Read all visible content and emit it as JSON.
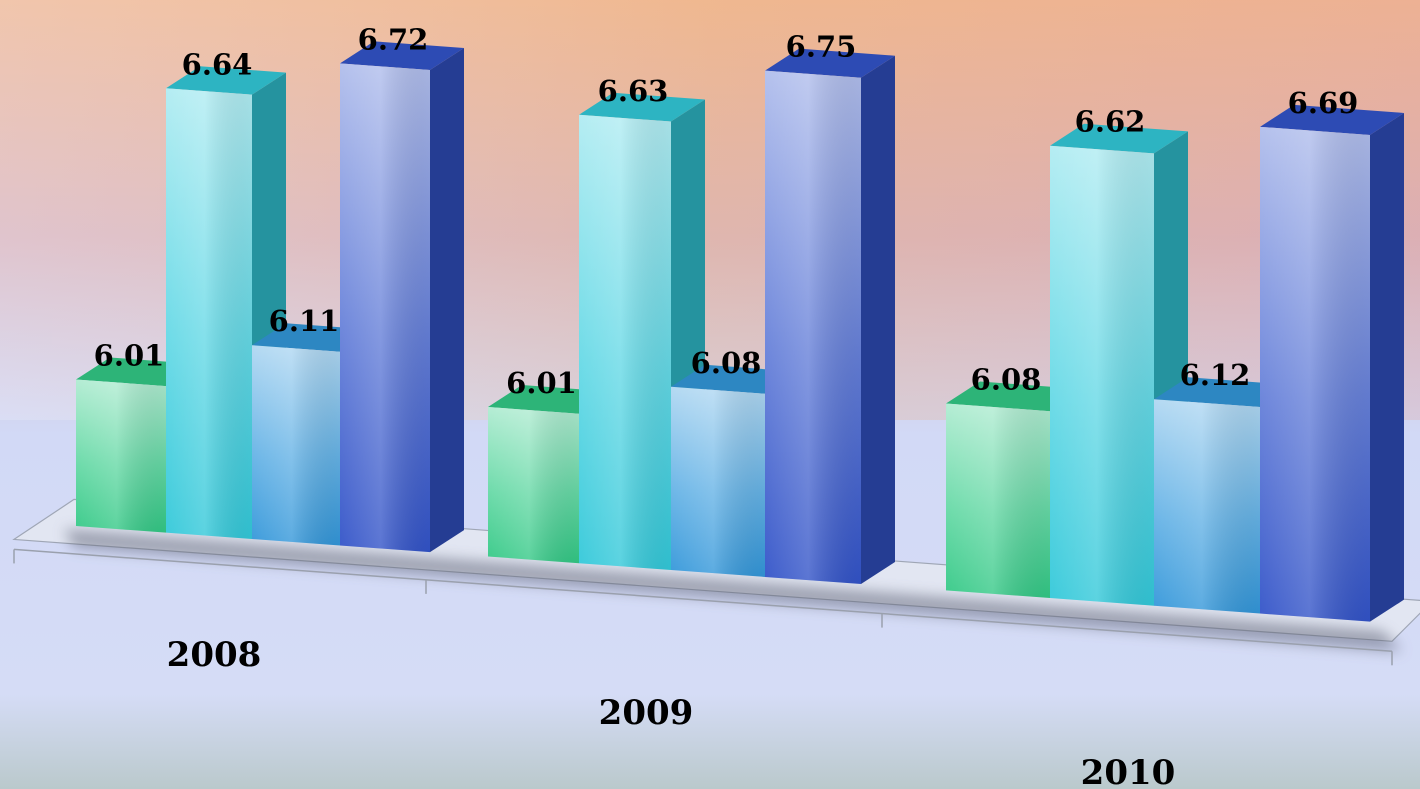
{
  "chart_data": {
    "type": "bar",
    "style": "3d-clustered",
    "categories": [
      "2008",
      "2009",
      "2010"
    ],
    "series": [
      {
        "values": [
          6.01,
          6.01,
          6.08
        ]
      },
      {
        "values": [
          6.64,
          6.63,
          6.62
        ]
      },
      {
        "values": [
          6.11,
          6.08,
          6.12
        ]
      },
      {
        "values": [
          6.72,
          6.75,
          6.69
        ]
      }
    ],
    "data_labels": true,
    "legend": "none",
    "grid": false
  },
  "colors": {
    "series": [
      "#33cc88",
      "#33ccdd",
      "#3399dd",
      "#3355cc"
    ]
  }
}
